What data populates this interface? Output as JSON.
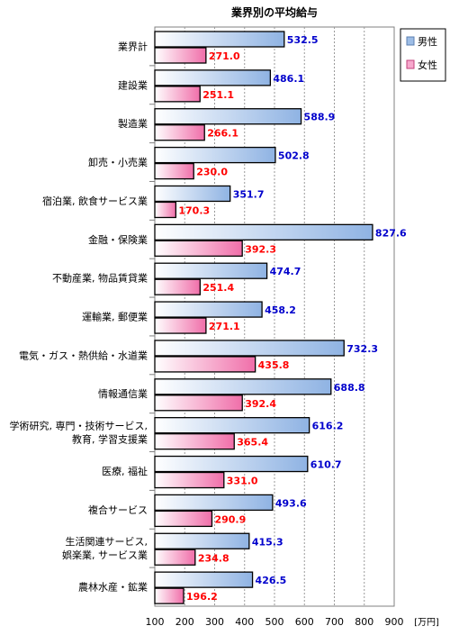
{
  "chart_data": {
    "type": "bar",
    "orientation": "horizontal",
    "title": "業界別の平均給与",
    "unit": "[万円]",
    "categories": [
      [
        "業界計"
      ],
      [
        "建設業"
      ],
      [
        "製造業"
      ],
      [
        "卸売・小売業"
      ],
      [
        "宿泊業, 飲食サービス業"
      ],
      [
        "金融・保険業"
      ],
      [
        "不動産業, 物品賃貸業"
      ],
      [
        "運輸業, 郵便業"
      ],
      [
        "電気・ガス・熱供給・水道業"
      ],
      [
        "情報通信業"
      ],
      [
        "学術研究, 専門・技術サービス,",
        "教育, 学習支援業"
      ],
      [
        "医療, 福祉"
      ],
      [
        "複合サービス"
      ],
      [
        "生活関連サービス,",
        "娯楽業, サービス業"
      ],
      [
        "農林水産・鉱業"
      ]
    ],
    "series": [
      {
        "name": "男性",
        "color": "#0000cc",
        "values": [
          532.5,
          486.1,
          588.9,
          502.8,
          351.7,
          827.6,
          474.7,
          458.2,
          732.3,
          688.8,
          616.2,
          610.7,
          493.6,
          415.3,
          426.5
        ]
      },
      {
        "name": "女性",
        "color": "#ff0000",
        "values": [
          271.0,
          251.1,
          266.1,
          230.0,
          170.3,
          392.3,
          251.4,
          271.1,
          435.8,
          392.4,
          365.4,
          331.0,
          290.9,
          234.8,
          196.2
        ]
      }
    ],
    "xlim": [
      100,
      900
    ],
    "xticks": [
      100,
      200,
      300,
      400,
      500,
      600,
      700,
      800,
      900
    ],
    "grid": "vertical dashed",
    "legend": "top-right"
  }
}
